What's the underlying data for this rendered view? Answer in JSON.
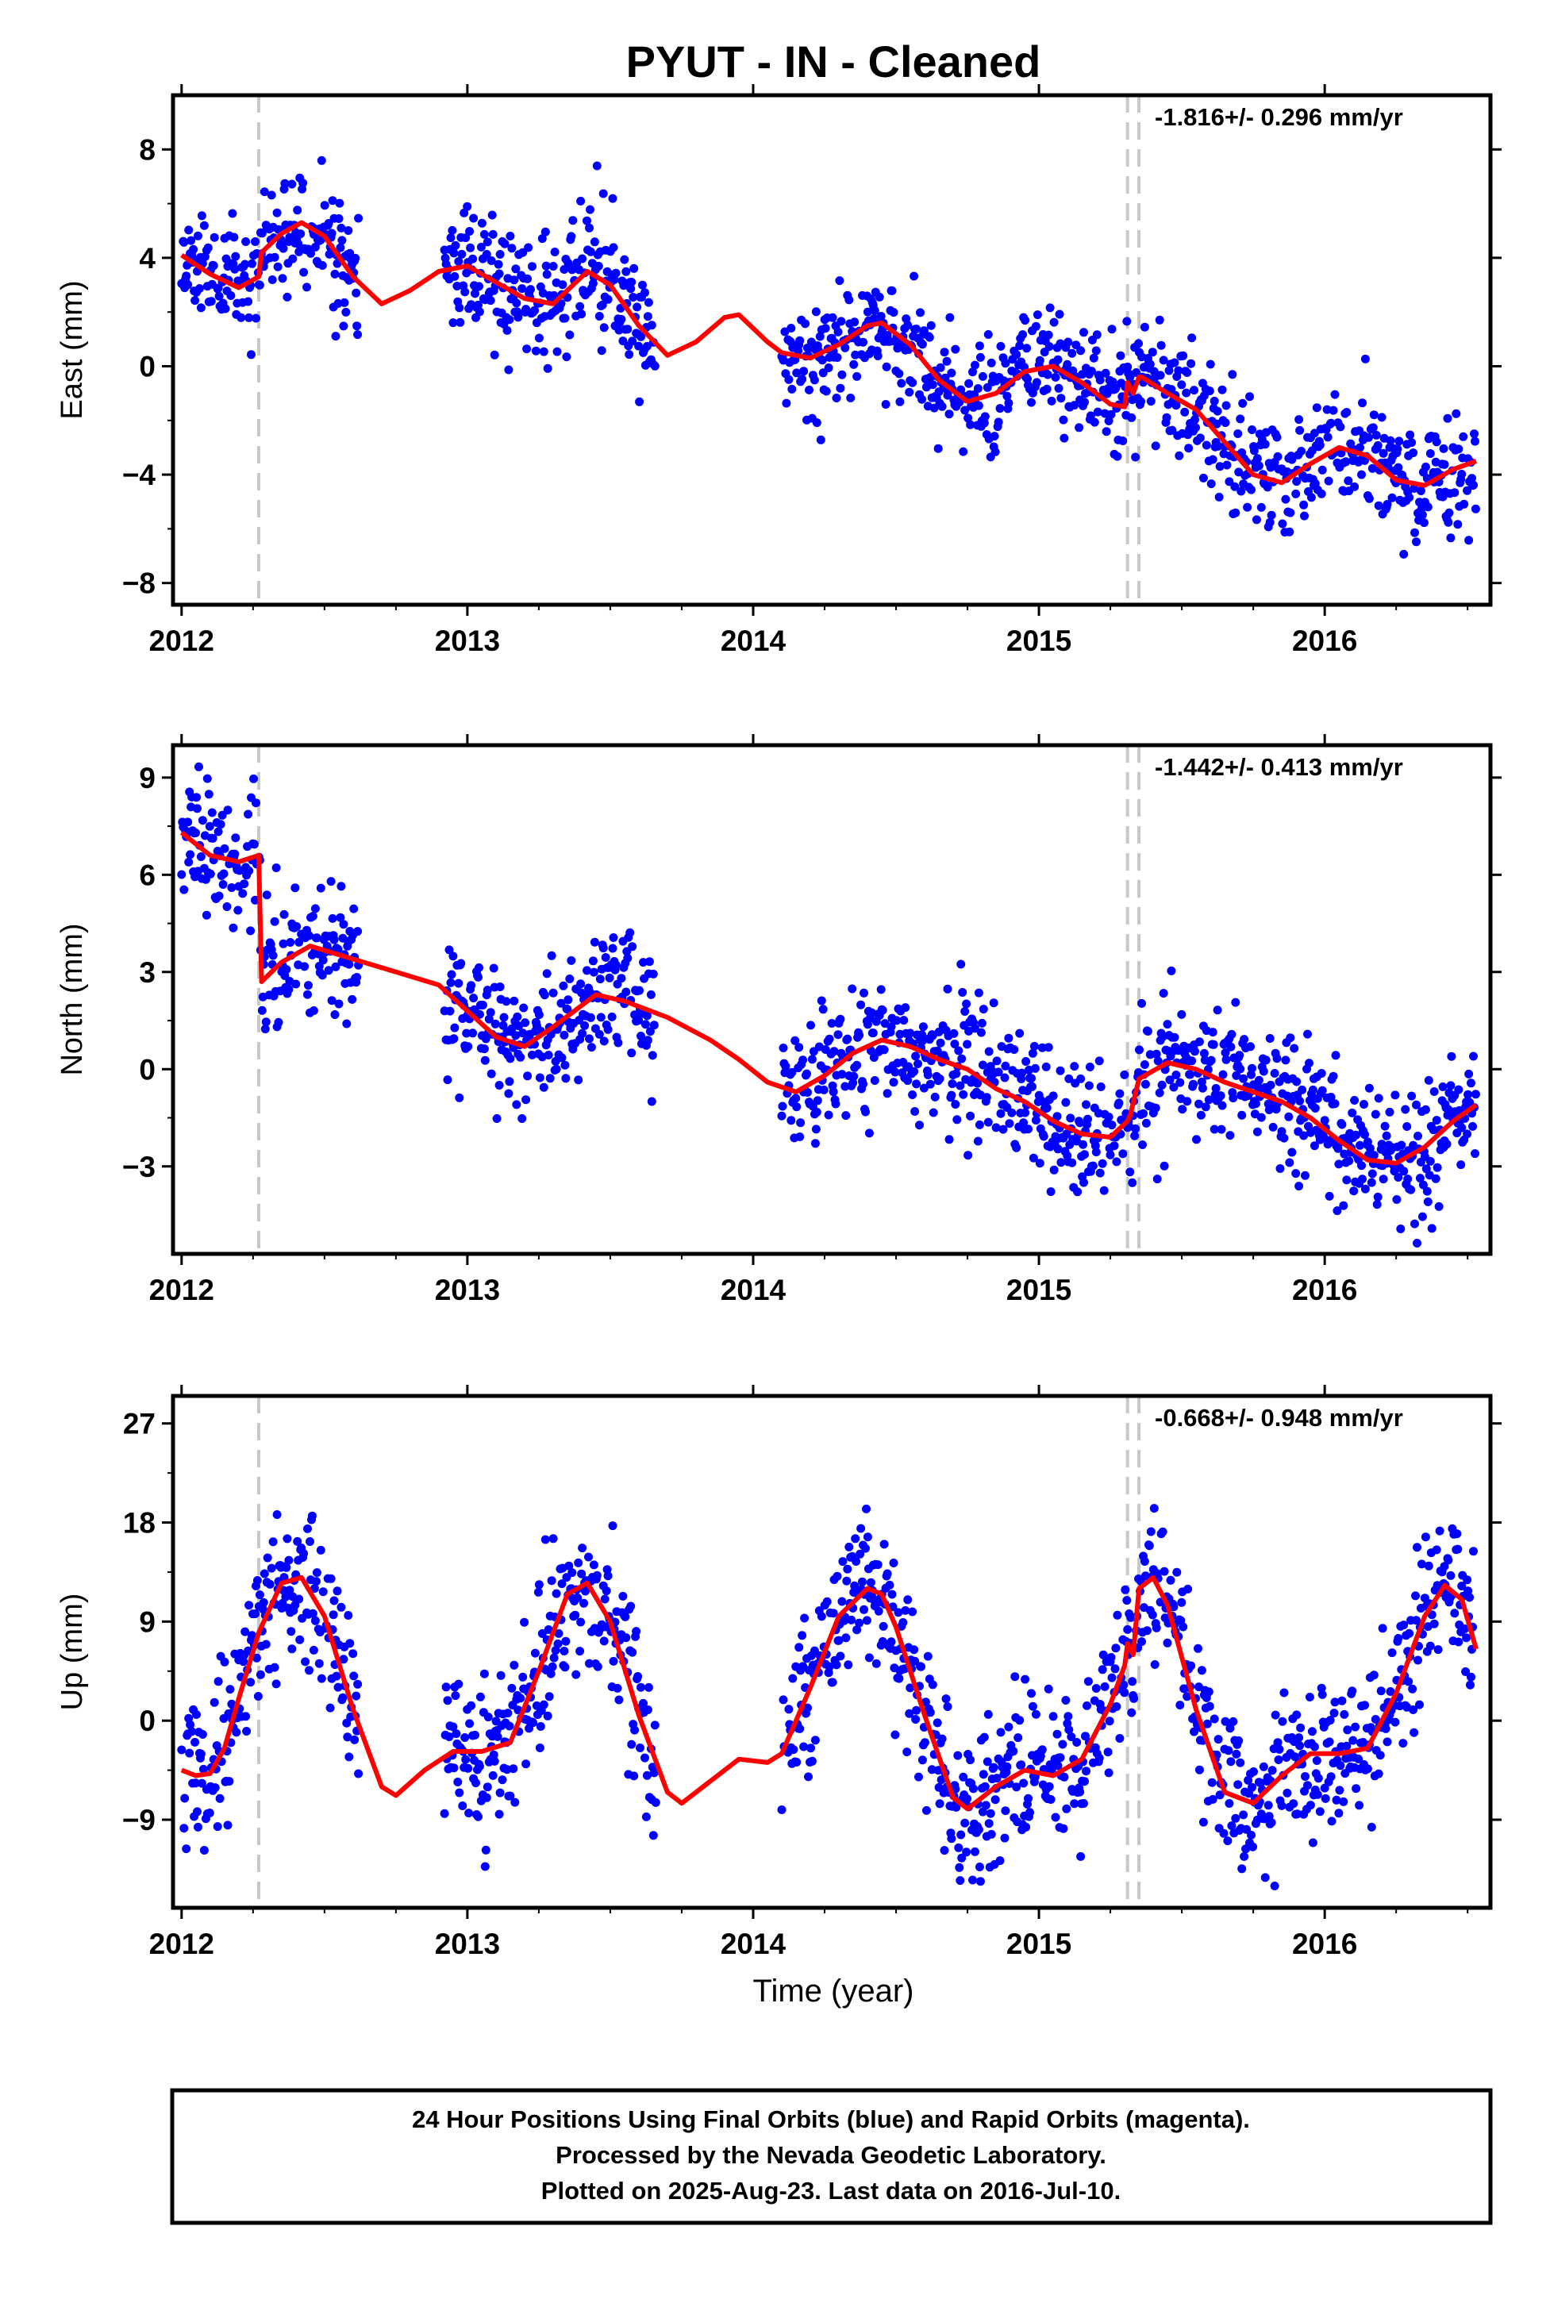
{
  "title": "PYUT  - IN - Cleaned",
  "xlabel": "Time (year)",
  "footer": {
    "line1": "24 Hour Positions Using Final Orbits (blue) and Rapid Orbits (magenta).",
    "line2": "Processed by the Nevada Geodetic Laboratory.",
    "line3": "Plotted on 2025-Aug-23. Last data on 2016-Jul-10."
  },
  "colors": {
    "points": "#0000ff",
    "model": "#ff0000",
    "steps": "#c8c8c8",
    "frame": "#000000"
  },
  "chart_data": [
    {
      "type": "scatter",
      "ylabel": "East (mm)",
      "rate": "-1.816+/- 0.296 mm/yr",
      "xlim": [
        2011.97,
        2016.58
      ],
      "ylim": [
        -8.8,
        10
      ],
      "xticks": [
        2012,
        2013,
        2014,
        2015,
        2016
      ],
      "yticks": [
        -8,
        -4,
        0,
        4,
        8
      ],
      "steps": [
        2012.27,
        2015.31,
        2015.35
      ],
      "model": {
        "name": "model",
        "x": [
          2012.0,
          2012.1,
          2012.2,
          2012.27,
          2012.28,
          2012.35,
          2012.42,
          2012.5,
          2012.6,
          2012.7,
          2012.8,
          2012.9,
          2013.0,
          2013.1,
          2013.2,
          2013.3,
          2013.42,
          2013.5,
          2013.6,
          2013.7,
          2013.8,
          2013.9,
          2013.95,
          2014.05,
          2014.1,
          2014.2,
          2014.3,
          2014.4,
          2014.45,
          2014.55,
          2014.65,
          2014.75,
          2014.85,
          2014.95,
          2015.05,
          2015.15,
          2015.25,
          2015.3,
          2015.31,
          2015.33,
          2015.35,
          2015.36,
          2015.45,
          2015.55,
          2015.65,
          2015.75,
          2015.85,
          2015.95,
          2016.05,
          2016.15,
          2016.25,
          2016.35,
          2016.45,
          2016.53
        ],
        "y": [
          4.1,
          3.4,
          2.9,
          3.3,
          4.2,
          4.9,
          5.3,
          4.8,
          3.3,
          2.3,
          2.8,
          3.5,
          3.7,
          3.1,
          2.5,
          2.3,
          3.5,
          3.0,
          1.5,
          0.4,
          0.9,
          1.8,
          1.9,
          0.9,
          0.5,
          0.3,
          0.8,
          1.5,
          1.6,
          0.8,
          -0.5,
          -1.3,
          -1.0,
          -0.2,
          0.0,
          -0.6,
          -1.4,
          -1.5,
          -0.6,
          -1.0,
          -0.4,
          -0.4,
          -1.0,
          -1.6,
          -2.8,
          -4.0,
          -4.3,
          -3.6,
          -3.0,
          -3.3,
          -4.2,
          -4.4,
          -3.8,
          -3.5
        ]
      },
      "points": {
        "name": "daily positions",
        "segments": [
          [
            2012.0,
            2012.62
          ],
          [
            2012.92,
            2013.66
          ],
          [
            2014.1,
            2016.53
          ]
        ],
        "seed": 11,
        "noise": 1.1
      }
    },
    {
      "type": "scatter",
      "ylabel": "North (mm)",
      "rate": "-1.442+/- 0.413 mm/yr",
      "xlim": [
        2011.97,
        2016.58
      ],
      "ylim": [
        -5.7,
        10
      ],
      "xticks": [
        2012,
        2013,
        2014,
        2015,
        2016
      ],
      "yticks": [
        -3,
        0,
        3,
        6,
        9
      ],
      "steps": [
        2012.27,
        2015.31,
        2015.35
      ],
      "model": {
        "name": "model",
        "x": [
          2012.0,
          2012.1,
          2012.2,
          2012.27,
          2012.28,
          2012.35,
          2012.45,
          2012.6,
          2012.75,
          2012.9,
          2013.0,
          2013.1,
          2013.2,
          2013.3,
          2013.45,
          2013.55,
          2013.7,
          2013.85,
          2013.95,
          2014.05,
          2014.15,
          2014.25,
          2014.35,
          2014.45,
          2014.55,
          2014.65,
          2014.75,
          2014.85,
          2014.95,
          2015.05,
          2015.15,
          2015.25,
          2015.31,
          2015.32,
          2015.35,
          2015.45,
          2015.55,
          2015.65,
          2015.75,
          2015.85,
          2015.95,
          2016.05,
          2016.15,
          2016.25,
          2016.35,
          2016.45,
          2016.53
        ],
        "y": [
          7.3,
          6.6,
          6.4,
          6.6,
          2.7,
          3.3,
          3.8,
          3.4,
          3.0,
          2.6,
          1.8,
          1.0,
          0.7,
          1.3,
          2.3,
          2.1,
          1.6,
          0.9,
          0.3,
          -0.4,
          -0.7,
          -0.2,
          0.5,
          0.9,
          0.7,
          0.3,
          0.0,
          -0.6,
          -1.0,
          -1.6,
          -2.0,
          -2.1,
          -1.6,
          -1.4,
          -0.3,
          0.2,
          0.0,
          -0.4,
          -0.7,
          -1.0,
          -1.5,
          -2.2,
          -2.8,
          -2.9,
          -2.4,
          -1.6,
          -1.1
        ]
      },
      "points": {
        "name": "daily positions",
        "segments": [
          [
            2012.0,
            2012.62
          ],
          [
            2012.92,
            2013.66
          ],
          [
            2014.1,
            2016.53
          ]
        ],
        "seed": 23,
        "noise": 1.0
      }
    },
    {
      "type": "scatter",
      "ylabel": "Up (mm)",
      "rate": "-0.668+/- 0.948 mm/yr",
      "xlim": [
        2011.97,
        2016.58
      ],
      "ylim": [
        -17,
        29.5
      ],
      "xticks": [
        2012,
        2013,
        2014,
        2015,
        2016
      ],
      "yticks": [
        -9,
        0,
        9,
        18,
        27
      ],
      "steps": [
        2012.27,
        2015.31,
        2015.35
      ],
      "model": {
        "name": "model",
        "x": [
          2012.0,
          2012.05,
          2012.1,
          2012.15,
          2012.2,
          2012.27,
          2012.35,
          2012.42,
          2012.5,
          2012.6,
          2012.7,
          2012.75,
          2012.85,
          2012.95,
          2013.05,
          2013.15,
          2013.25,
          2013.35,
          2013.42,
          2013.5,
          2013.6,
          2013.7,
          2013.75,
          2013.85,
          2013.95,
          2014.05,
          2014.1,
          2014.2,
          2014.3,
          2014.4,
          2014.45,
          2014.5,
          2014.6,
          2014.7,
          2014.75,
          2014.85,
          2014.95,
          2015.05,
          2015.15,
          2015.25,
          2015.3,
          2015.31,
          2015.33,
          2015.35,
          2015.4,
          2015.45,
          2015.55,
          2015.65,
          2015.75,
          2015.85,
          2015.95,
          2016.05,
          2016.15,
          2016.25,
          2016.35,
          2016.42,
          2016.48,
          2016.53
        ],
        "y": [
          -4.5,
          -5.0,
          -4.8,
          -2.5,
          2.0,
          8.0,
          12.5,
          13.0,
          9.5,
          1.0,
          -6.0,
          -6.8,
          -4.5,
          -2.8,
          -2.8,
          -2.0,
          4.5,
          11.5,
          12.5,
          9.0,
          0.5,
          -6.5,
          -7.5,
          -5.5,
          -3.5,
          -3.8,
          -3.0,
          3.0,
          9.5,
          12.0,
          11.5,
          8.5,
          0.5,
          -7.0,
          -8.0,
          -6.0,
          -4.5,
          -5.0,
          -3.5,
          1.5,
          5.0,
          7.0,
          6.0,
          12.0,
          13.0,
          10.5,
          1.0,
          -6.5,
          -7.5,
          -5.0,
          -3.0,
          -3.0,
          -2.5,
          2.5,
          9.5,
          12.3,
          11.0,
          6.5
        ]
      },
      "points": {
        "name": "daily positions",
        "segments": [
          [
            2012.0,
            2012.62
          ],
          [
            2012.92,
            2013.66
          ],
          [
            2014.1,
            2016.53
          ]
        ],
        "seed": 37,
        "noise": 3.4
      }
    }
  ]
}
